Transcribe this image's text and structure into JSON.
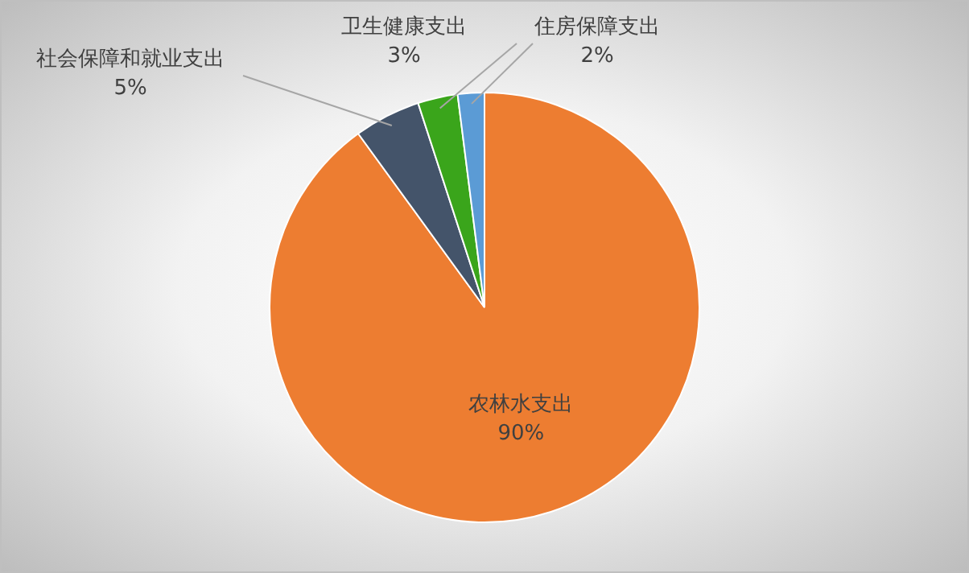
{
  "chart_data": {
    "type": "pie",
    "categories": [
      "农林水支出",
      "社会保障和就业支出",
      "卫生健康支出",
      "住房保障支出"
    ],
    "values": [
      90,
      5,
      3,
      2
    ],
    "value_labels": [
      "90%",
      "5%",
      "3%",
      "2%"
    ],
    "colors": [
      "#ed7d31",
      "#44546a",
      "#3aa51b",
      "#5b9bd5"
    ],
    "legend": false
  }
}
